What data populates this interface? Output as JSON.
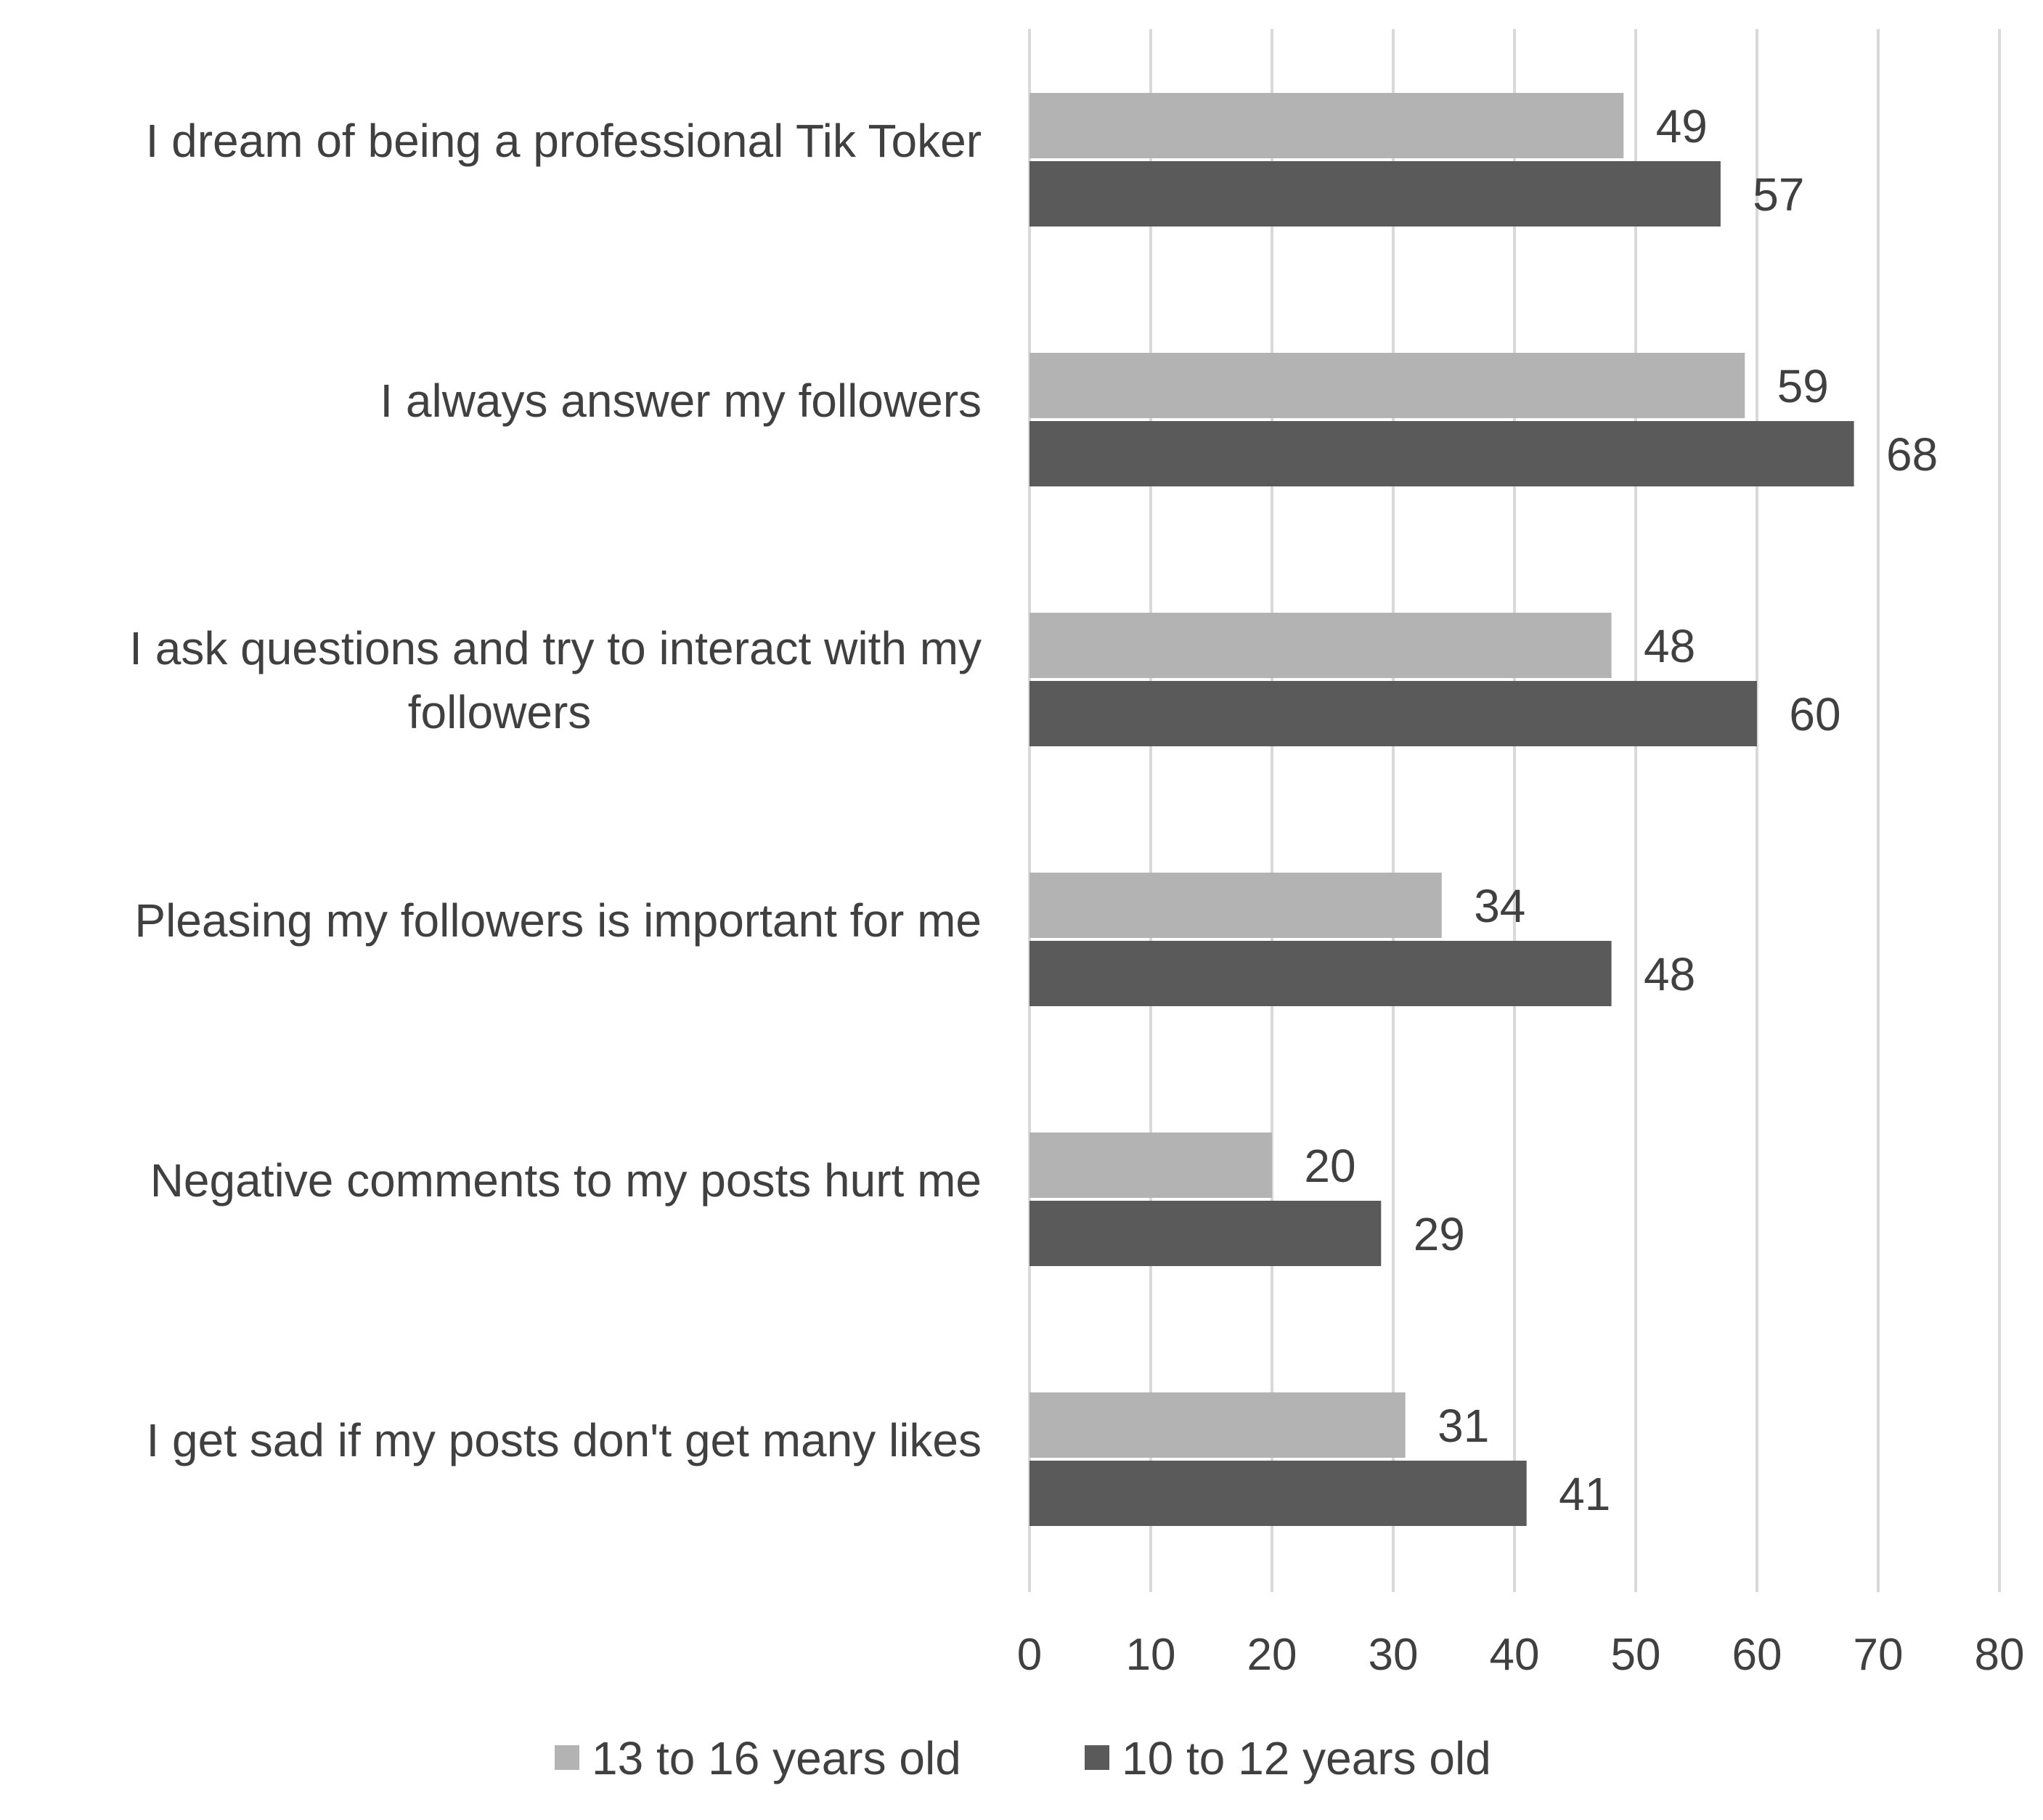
{
  "chart_data": {
    "type": "bar",
    "orientation": "horizontal",
    "categories": [
      "I dream of being a professional Tik Toker",
      "I always answer my followers",
      "I ask questions and try to interact with my followers",
      "Pleasing my followers is important for me",
      "Negative comments to my posts hurt me",
      "I get sad if my posts don't get many likes"
    ],
    "category_lines": [
      [
        "I dream of being a professional Tik Toker"
      ],
      [
        "I always answer my followers"
      ],
      [
        "I ask questions and try to interact with my",
        "followers"
      ],
      [
        "Pleasing my followers is important for me"
      ],
      [
        "Negative comments to my posts hurt me"
      ],
      [
        "I get sad if my posts don't get many likes"
      ]
    ],
    "series": [
      {
        "name": "13 to 16 years old",
        "color": "#b3b3b3",
        "values": [
          49,
          59,
          48,
          34,
          20,
          31
        ]
      },
      {
        "name": "10 to 12 years old",
        "color": "#5a5a5a",
        "values": [
          57,
          68,
          60,
          48,
          29,
          41
        ]
      }
    ],
    "xlim": [
      0,
      80
    ],
    "xticks": [
      0,
      10,
      20,
      30,
      40,
      50,
      60,
      70,
      80
    ],
    "title": "",
    "xlabel": "",
    "ylabel": "",
    "grid": true,
    "gridlines": "vertical",
    "legend_position": "bottom",
    "data_labels": true
  }
}
